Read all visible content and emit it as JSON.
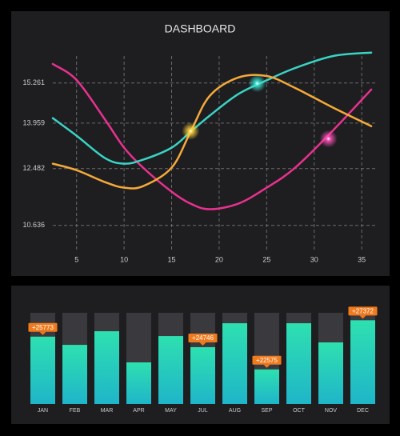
{
  "chart_data": [
    {
      "type": "line",
      "title": "DASHBOARD",
      "x": [
        2.5,
        5,
        8,
        10,
        12,
        15,
        17,
        19,
        22,
        25,
        28,
        32,
        36
      ],
      "series": [
        {
          "color": "#e8318f",
          "values": [
            15.88,
            15.36,
            14.07,
            13.16,
            12.51,
            11.73,
            11.34,
            11.16,
            11.34,
            11.86,
            12.51,
            13.73,
            15.05
          ]
        },
        {
          "color": "#3ad3c4",
          "values": [
            14.12,
            13.55,
            12.82,
            12.64,
            12.77,
            13.16,
            13.68,
            14.2,
            14.9,
            15.35,
            15.75,
            16.14,
            16.25
          ]
        },
        {
          "color": "#f5a93a",
          "values": [
            12.64,
            12.43,
            12.04,
            11.86,
            11.91,
            12.51,
            13.68,
            14.84,
            15.44,
            15.49,
            15.1,
            14.46,
            13.86
          ]
        }
      ],
      "markers": [
        {
          "x": 17,
          "y": 13.7,
          "color": "#ffd23a"
        },
        {
          "x": 24,
          "y": 15.25,
          "color": "#3ae8d6"
        },
        {
          "x": 31.5,
          "y": 13.45,
          "color": "#ff4fb8"
        }
      ],
      "xlim": [
        2.5,
        36.5
      ],
      "ylim": [
        9.9,
        16.4
      ],
      "xticks": [
        5,
        10,
        15,
        20,
        25,
        30,
        35
      ],
      "yticks": [
        10.636,
        12.482,
        13.959,
        15.261
      ],
      "grid": true
    },
    {
      "type": "bar",
      "categories": [
        "JAN",
        "FEB",
        "MAR",
        "APR",
        "MAY",
        "JUL",
        "AUG",
        "SEP",
        "OCT",
        "NOV",
        "DEC"
      ],
      "values": [
        25773,
        24970,
        26300,
        23260,
        25830,
        24746,
        27080,
        22575,
        27080,
        25210,
        27372
      ],
      "value_labels": [
        "+25773",
        null,
        null,
        null,
        null,
        "+24746",
        null,
        "+22575",
        null,
        null,
        "+27372"
      ],
      "ylim": [
        19200,
        28100
      ],
      "color": [
        "#2ee0b0",
        "#1fb5c9"
      ]
    }
  ]
}
